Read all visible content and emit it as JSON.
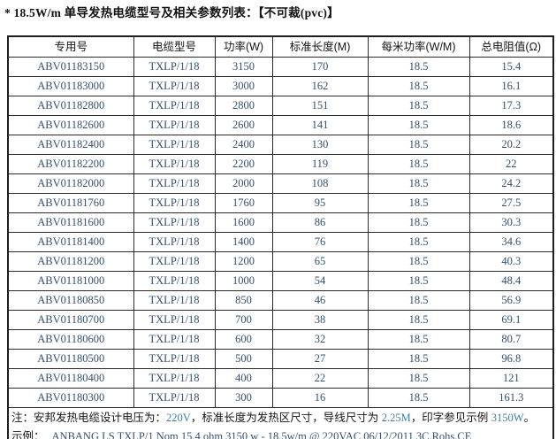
{
  "title": "* 18.5W/m 单导发热电缆型号及相关参数列表：【不可裁(pvc)】",
  "table": {
    "headers": [
      "专用号",
      "电缆型号",
      "功率(W)",
      "标准长度(M)",
      "每米功率(W/M)",
      "总电阻值(Ω)"
    ],
    "rows": [
      [
        "ABV01183150",
        "TXLP/1/18",
        "3150",
        "170",
        "18.5",
        "15.4"
      ],
      [
        "ABV01183000",
        "TXLP/1/18",
        "3000",
        "162",
        "18.5",
        "16.1"
      ],
      [
        "ABV01182800",
        "TXLP/1/18",
        "2800",
        "151",
        "18.5",
        "17.3"
      ],
      [
        "ABV01182600",
        "TXLP/1/18",
        "2600",
        "141",
        "18.5",
        "18.6"
      ],
      [
        "ABV01182400",
        "TXLP/1/18",
        "2400",
        "130",
        "18.5",
        "20.2"
      ],
      [
        "ABV01182200",
        "TXLP/1/18",
        "2200",
        "119",
        "18.5",
        "22"
      ],
      [
        "ABV01182000",
        "TXLP/1/18",
        "2000",
        "108",
        "18.5",
        "24.2"
      ],
      [
        "ABV01181760",
        "TXLP/1/18",
        "1760",
        "95",
        "18.5",
        "27.5"
      ],
      [
        "ABV01181600",
        "TXLP/1/18",
        "1600",
        "86",
        "18.5",
        "30.3"
      ],
      [
        "ABV01181400",
        "TXLP/1/18",
        "1400",
        "76",
        "18.5",
        "34.6"
      ],
      [
        "ABV01181200",
        "TXLP/1/18",
        "1200",
        "65",
        "18.5",
        "40.3"
      ],
      [
        "ABV01181000",
        "TXLP/1/18",
        "1000",
        "54",
        "18.5",
        "48.4"
      ],
      [
        "ABV01180850",
        "TXLP/1/18",
        "850",
        "46",
        "18.5",
        "56.9"
      ],
      [
        "ABV01180700",
        "TXLP/1/18",
        "700",
        "38",
        "18.5",
        "69.1"
      ],
      [
        "ABV01180600",
        "TXLP/1/18",
        "600",
        "32",
        "18.5",
        "80.7"
      ],
      [
        "ABV01180500",
        "TXLP/1/18",
        "500",
        "27",
        "18.5",
        "96.8"
      ],
      [
        "ABV01180400",
        "TXLP/1/18",
        "400",
        "22",
        "18.5",
        "121"
      ],
      [
        "ABV01180300",
        "TXLP/1/18",
        "300",
        "16",
        "18.5",
        "161.3"
      ]
    ]
  },
  "notes": {
    "l1a": "注：安邦发热电缆设计电压为：",
    "l1b": "220V",
    "l1c": "，标准长度为发热区尺寸，导线尺寸为 ",
    "l1d": "2.25M",
    "l1e": "，印字参见示例 ",
    "l1f": "3150W",
    "l1g": "。",
    "l2a": "示例：",
    "l2b": "ANBANG LS TXLP/1 Nom 15.4 ohm 3150 w - 18.5w/m @ 220VAC 06/12/2011 3C.Rohs.CE"
  },
  "colors": {
    "text_chinese": "#161616",
    "text_numbers": "#35506e",
    "accent_blue": "#3f7ca8",
    "border": "#2b2b2b",
    "background": "#ffffff"
  }
}
